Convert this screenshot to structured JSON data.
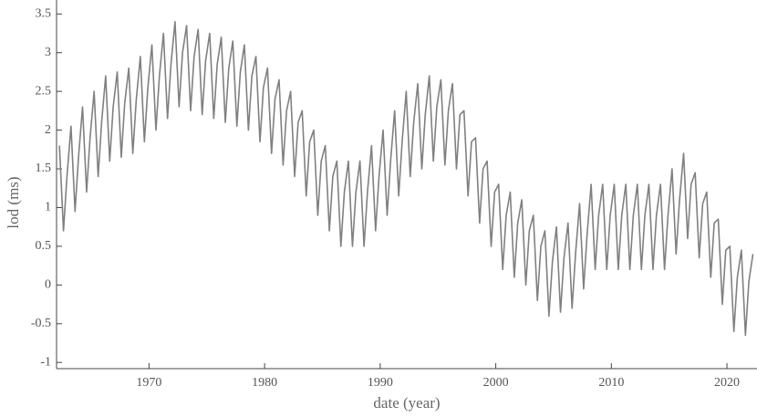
{
  "chart_data": {
    "type": "line",
    "xlabel": "date (year)",
    "ylabel": "lod (ms)",
    "xlim": [
      1962,
      2022.6
    ],
    "ylim": [
      -1.08,
      3.68
    ],
    "xticks": [
      1970,
      1980,
      1990,
      2000,
      2010,
      2020
    ],
    "yticks": [
      -1,
      -0.5,
      0,
      0.5,
      1,
      1.5,
      2,
      2.5,
      3,
      3.5
    ],
    "series": [
      {
        "color": "#808080",
        "x": [
          1962.25,
          1962.6,
          1962.9,
          1963.25,
          1963.6,
          1963.9,
          1964.25,
          1964.6,
          1964.9,
          1965.25,
          1965.6,
          1965.9,
          1966.25,
          1966.6,
          1966.9,
          1967.25,
          1967.6,
          1967.9,
          1968.25,
          1968.6,
          1968.9,
          1969.25,
          1969.6,
          1969.9,
          1970.25,
          1970.6,
          1970.9,
          1971.25,
          1971.6,
          1971.9,
          1972.25,
          1972.6,
          1972.9,
          1973.25,
          1973.6,
          1973.9,
          1974.25,
          1974.6,
          1974.9,
          1975.25,
          1975.6,
          1975.9,
          1976.25,
          1976.6,
          1976.9,
          1977.25,
          1977.6,
          1977.9,
          1978.25,
          1978.6,
          1978.9,
          1979.25,
          1979.6,
          1979.9,
          1980.25,
          1980.6,
          1980.9,
          1981.25,
          1981.6,
          1981.9,
          1982.25,
          1982.6,
          1982.9,
          1983.25,
          1983.6,
          1983.9,
          1984.25,
          1984.6,
          1984.9,
          1985.25,
          1985.6,
          1985.9,
          1986.25,
          1986.6,
          1986.9,
          1987.25,
          1987.6,
          1987.9,
          1988.25,
          1988.6,
          1988.9,
          1989.25,
          1989.6,
          1989.9,
          1990.25,
          1990.6,
          1990.9,
          1991.25,
          1991.6,
          1991.9,
          1992.25,
          1992.6,
          1992.9,
          1993.25,
          1993.6,
          1993.9,
          1994.25,
          1994.6,
          1994.9,
          1995.25,
          1995.6,
          1995.9,
          1996.25,
          1996.6,
          1996.9,
          1997.25,
          1997.6,
          1997.9,
          1998.25,
          1998.6,
          1998.9,
          1999.25,
          1999.6,
          1999.9,
          2000.25,
          2000.6,
          2000.9,
          2001.25,
          2001.6,
          2001.9,
          2002.25,
          2002.6,
          2002.9,
          2003.25,
          2003.6,
          2003.9,
          2004.25,
          2004.6,
          2004.9,
          2005.25,
          2005.6,
          2005.9,
          2006.25,
          2006.6,
          2006.9,
          2007.25,
          2007.6,
          2007.9,
          2008.25,
          2008.6,
          2008.9,
          2009.25,
          2009.6,
          2009.9,
          2010.25,
          2010.6,
          2010.9,
          2011.25,
          2011.6,
          2011.9,
          2012.25,
          2012.6,
          2012.9,
          2013.25,
          2013.6,
          2013.9,
          2014.25,
          2014.6,
          2014.9,
          2015.25,
          2015.6,
          2015.9,
          2016.25,
          2016.6,
          2016.9,
          2017.25,
          2017.6,
          2017.9,
          2018.25,
          2018.6,
          2018.9,
          2019.25,
          2019.6,
          2019.9,
          2020.25,
          2020.6,
          2020.9,
          2021.25,
          2021.6,
          2021.9,
          2022.25
        ],
        "values": [
          1.8,
          0.7,
          1.4,
          2.05,
          0.95,
          1.65,
          2.3,
          1.2,
          1.9,
          2.5,
          1.4,
          2.1,
          2.7,
          1.6,
          2.3,
          2.75,
          1.65,
          2.35,
          2.8,
          1.7,
          2.4,
          2.95,
          1.85,
          2.55,
          3.1,
          2.0,
          2.7,
          3.25,
          2.15,
          2.85,
          3.4,
          2.3,
          3.0,
          3.35,
          2.25,
          2.95,
          3.3,
          2.2,
          2.9,
          3.25,
          2.15,
          2.85,
          3.2,
          2.1,
          2.8,
          3.15,
          2.05,
          2.75,
          3.1,
          2.0,
          2.7,
          2.95,
          1.85,
          2.55,
          2.8,
          1.7,
          2.4,
          2.65,
          1.55,
          2.25,
          2.5,
          1.4,
          2.1,
          2.25,
          1.15,
          1.85,
          2.0,
          0.9,
          1.6,
          1.8,
          0.7,
          1.4,
          1.6,
          0.5,
          1.2,
          1.6,
          0.5,
          1.2,
          1.6,
          0.5,
          1.2,
          1.8,
          0.7,
          1.4,
          2.0,
          0.9,
          1.6,
          2.25,
          1.15,
          1.85,
          2.5,
          1.4,
          2.1,
          2.6,
          1.5,
          2.2,
          2.7,
          1.6,
          2.3,
          2.65,
          1.55,
          2.25,
          2.6,
          1.5,
          2.2,
          2.25,
          1.15,
          1.85,
          1.9,
          0.8,
          1.5,
          1.6,
          0.5,
          1.2,
          1.3,
          0.2,
          0.9,
          1.2,
          0.1,
          0.8,
          1.1,
          0.0,
          0.7,
          0.9,
          -0.2,
          0.5,
          0.7,
          -0.4,
          0.3,
          0.75,
          -0.35,
          0.35,
          0.8,
          -0.3,
          0.4,
          1.05,
          -0.05,
          0.65,
          1.3,
          0.2,
          0.9,
          1.3,
          0.2,
          0.9,
          1.3,
          0.2,
          0.9,
          1.3,
          0.2,
          0.9,
          1.3,
          0.2,
          0.9,
          1.3,
          0.2,
          0.9,
          1.3,
          0.2,
          0.9,
          1.5,
          0.4,
          1.1,
          1.7,
          0.6,
          1.3,
          1.45,
          0.35,
          1.05,
          1.2,
          0.1,
          0.8,
          0.85,
          -0.25,
          0.45,
          0.5,
          -0.6,
          0.1,
          0.45,
          -0.65,
          0.05,
          0.4
        ]
      }
    ]
  }
}
